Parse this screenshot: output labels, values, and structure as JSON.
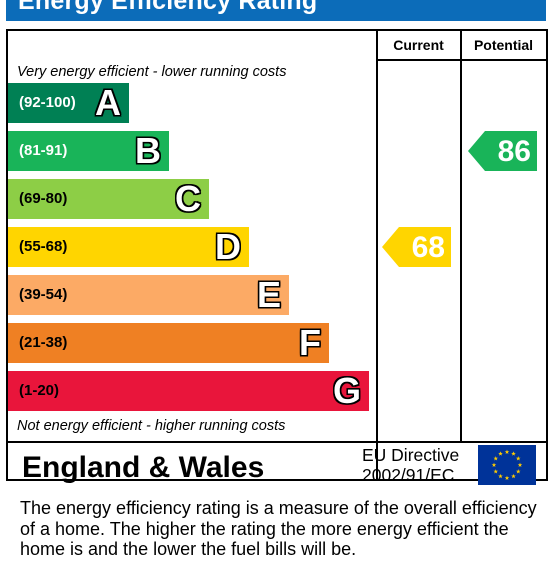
{
  "title": "Energy Efficiency Rating",
  "columns": {
    "current": "Current",
    "potential": "Potential"
  },
  "notes": {
    "top": "Very energy efficient - lower running costs",
    "bottom": "Not energy efficient - higher running costs"
  },
  "chart_data": {
    "type": "bar",
    "categories": [
      "A",
      "B",
      "C",
      "D",
      "E",
      "F",
      "G"
    ],
    "bands": [
      {
        "letter": "A",
        "range": "(92-100)",
        "min": 92,
        "max": 100,
        "color": "#008054",
        "range_color": "#ffffff"
      },
      {
        "letter": "B",
        "range": "(81-91)",
        "min": 81,
        "max": 91,
        "color": "#19b459",
        "range_color": "#ffffff"
      },
      {
        "letter": "C",
        "range": "(69-80)",
        "min": 69,
        "max": 80,
        "color": "#8dce46",
        "range_color": "#000000"
      },
      {
        "letter": "D",
        "range": "(55-68)",
        "min": 55,
        "max": 68,
        "color": "#ffd500",
        "range_color": "#000000"
      },
      {
        "letter": "E",
        "range": "(39-54)",
        "min": 39,
        "max": 54,
        "color": "#fcaa65",
        "range_color": "#000000"
      },
      {
        "letter": "F",
        "range": "(21-38)",
        "min": 21,
        "max": 38,
        "color": "#ef8023",
        "range_color": "#000000"
      },
      {
        "letter": "G",
        "range": "(1-20)",
        "min": 1,
        "max": 20,
        "color": "#e9153b",
        "range_color": "#000000"
      }
    ],
    "current": {
      "value": 68,
      "band": "D",
      "color": "#ffd500"
    },
    "potential": {
      "value": 86,
      "band": "B",
      "color": "#19b459"
    }
  },
  "footer": {
    "region": "England & Wales",
    "directive_line1": "EU Directive",
    "directive_line2": "2002/91/EC",
    "flag_icon": "eu-flag-icon",
    "flag_color": "#003399",
    "star_color": "#ffcc00"
  },
  "description": "The energy efficiency rating is a measure of the overall efficiency of a home.  The higher the rating the more energy efficient the home is and the lower the fuel bills will be."
}
